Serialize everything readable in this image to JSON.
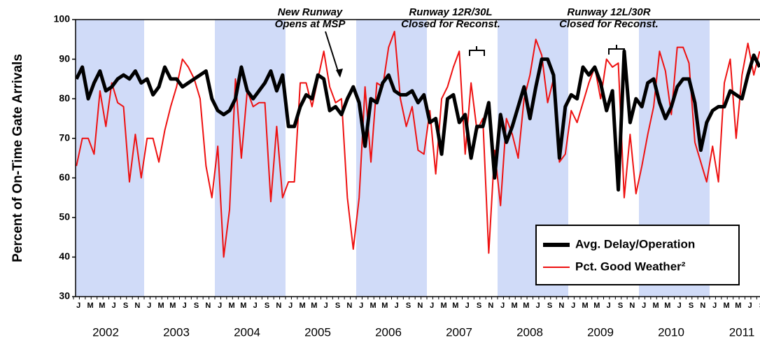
{
  "chart_data": {
    "type": "line",
    "y_label": "Percent of On-Time Gate Arrivals",
    "categories": [
      "J",
      null,
      "M",
      null,
      "M",
      null,
      "J",
      null,
      "S",
      null,
      "N",
      null,
      "J",
      null,
      "M",
      null,
      "M",
      null,
      "J",
      null,
      "S",
      null,
      "N",
      null,
      "J",
      null,
      "M",
      null,
      "M",
      null,
      "J",
      null,
      "S",
      null,
      "N",
      null,
      "J",
      null,
      "M",
      null,
      "M",
      null,
      "J",
      null,
      "S",
      null,
      "N",
      null,
      "J",
      null,
      "M",
      null,
      "M",
      null,
      "J",
      null,
      "S",
      null,
      "N",
      null,
      "J",
      null,
      "M",
      null,
      "M",
      null,
      "J",
      null,
      "S",
      null,
      "N",
      null,
      "J",
      null,
      "M",
      null,
      "M",
      null,
      "J",
      null,
      "S",
      null,
      "N",
      null,
      "J",
      null,
      "M",
      null,
      "M",
      null,
      "J",
      null,
      "S",
      null,
      "N",
      null,
      "J",
      null,
      "M",
      null,
      "M",
      null,
      "J",
      null,
      "S",
      null,
      "N",
      null,
      "J",
      null,
      "M",
      null,
      "M",
      null,
      "J",
      null,
      "S"
    ],
    "years": [
      "2002",
      "2003",
      "2004",
      "2005",
      "2006",
      "2007",
      "2008",
      "2009",
      "2010",
      "2011"
    ],
    "series": [
      {
        "name": "Avg. Delay/Operation",
        "color": "#000000",
        "values": [
          85,
          88,
          80,
          84,
          87,
          82,
          83,
          85,
          86,
          85,
          87,
          84,
          85,
          81,
          83,
          88,
          85,
          85,
          83,
          84,
          85,
          86,
          87,
          80,
          77,
          76,
          77,
          80,
          88,
          82,
          80,
          82,
          84,
          87,
          82,
          86,
          73,
          73,
          78,
          81,
          80,
          86,
          85,
          77,
          78,
          76,
          80,
          83,
          79,
          68,
          80,
          79,
          84,
          86,
          82,
          81,
          81,
          82,
          79,
          81,
          74,
          75,
          66,
          80,
          81,
          74,
          76,
          65,
          73,
          73,
          79,
          60,
          76,
          69,
          73,
          78,
          83,
          75,
          83,
          90,
          90,
          86,
          65,
          78,
          81,
          80,
          88,
          86,
          88,
          84,
          77,
          82,
          57,
          92,
          74,
          80,
          78,
          84,
          85,
          79,
          75,
          78,
          83,
          85,
          85,
          79,
          67,
          74,
          77,
          78,
          78,
          82,
          81,
          80,
          86,
          91,
          88
        ]
      },
      {
        "name": "Pct. Good Weather²",
        "color": "#ee1111",
        "values": [
          63,
          70,
          70,
          66,
          82,
          73,
          84,
          79,
          78,
          59,
          71,
          60,
          70,
          70,
          64,
          72,
          78,
          83,
          90,
          88,
          85,
          80,
          63,
          55,
          68,
          40,
          52,
          85,
          65,
          82,
          78,
          79,
          79,
          54,
          73,
          55,
          59,
          59,
          84,
          84,
          78,
          85,
          92,
          83,
          79,
          80,
          55,
          42,
          55,
          83,
          64,
          84,
          83,
          93,
          97,
          80,
          73,
          78,
          67,
          66,
          77,
          61,
          80,
          83,
          88,
          92,
          66,
          84,
          72,
          75,
          41,
          67,
          53,
          75,
          71,
          65,
          80,
          86,
          95,
          91,
          79,
          85,
          64,
          66,
          77,
          74,
          79,
          84,
          88,
          80,
          90,
          88,
          89,
          55,
          71,
          56,
          63,
          71,
          78,
          92,
          87,
          76,
          93,
          93,
          89,
          69,
          64,
          59,
          68,
          59,
          84,
          90,
          70,
          86,
          94,
          86,
          92
        ]
      }
    ],
    "ylim": [
      30,
      100
    ],
    "yticks": [
      30,
      40,
      50,
      60,
      70,
      80,
      90,
      100
    ],
    "annotations": [
      [
        "New Runway",
        "Opens at MSP"
      ],
      [
        "Runway 12R/30L",
        "Closed for Reconst."
      ],
      [
        "Runway 12L/30R",
        "Closed for Reconst."
      ]
    ],
    "legend": "lower right"
  }
}
